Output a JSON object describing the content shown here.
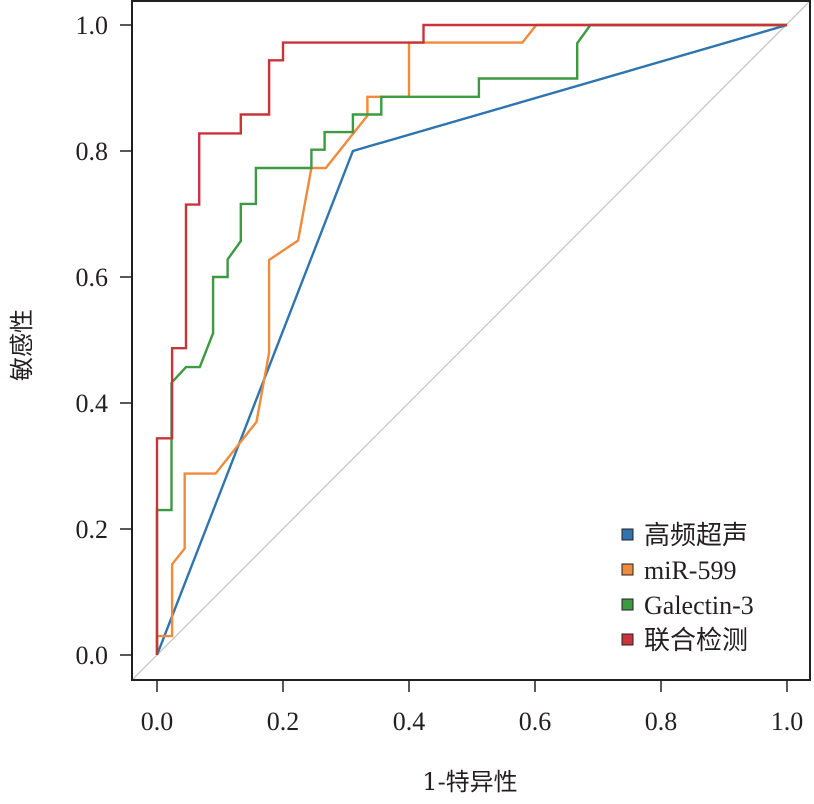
{
  "chart_data": {
    "type": "line",
    "title": "",
    "xlabel": "1-特异性",
    "ylabel": "敏感性",
    "xlim": [
      0,
      1
    ],
    "ylim": [
      0,
      1
    ],
    "xticks": [
      "0.0",
      "0.2",
      "0.4",
      "0.6",
      "0.8",
      "1.0"
    ],
    "yticks": [
      "0.0",
      "0.2",
      "0.4",
      "0.6",
      "0.8",
      "1.0"
    ],
    "grid": false,
    "legend_position": "bottom-right",
    "reference_line": {
      "name": "chance",
      "x": [
        0,
        1
      ],
      "y": [
        0,
        1
      ],
      "color": "#c8c8c8"
    },
    "series": [
      {
        "name": "高频超声",
        "color": "#2e75b0",
        "x": [
          0,
          0.311,
          1
        ],
        "y": [
          0,
          0.8,
          1
        ]
      },
      {
        "name": "miR-599",
        "color": "#f08a3c",
        "x": [
          0,
          0,
          0.024,
          0.024,
          0.044,
          0.044,
          0.093,
          0.158,
          0.178,
          0.178,
          0.224,
          0.245,
          0.268,
          0.334,
          0.334,
          0.4,
          0.4,
          0.58,
          0.602,
          1
        ],
        "y": [
          0,
          0.03,
          0.03,
          0.144,
          0.169,
          0.288,
          0.288,
          0.37,
          0.48,
          0.627,
          0.658,
          0.773,
          0.773,
          0.856,
          0.886,
          0.886,
          0.972,
          0.972,
          1.0,
          1.0
        ]
      },
      {
        "name": "Galectin-3",
        "color": "#3c9a41",
        "x": [
          0,
          0,
          0.023,
          0.023,
          0.046,
          0.068,
          0.089,
          0.089,
          0.112,
          0.112,
          0.133,
          0.133,
          0.157,
          0.157,
          0.245,
          0.245,
          0.266,
          0.266,
          0.311,
          0.311,
          0.356,
          0.356,
          0.511,
          0.511,
          0.667,
          0.667,
          0.688,
          1
        ],
        "y": [
          0,
          0.23,
          0.23,
          0.432,
          0.457,
          0.457,
          0.511,
          0.6,
          0.6,
          0.628,
          0.657,
          0.716,
          0.716,
          0.773,
          0.773,
          0.802,
          0.802,
          0.83,
          0.83,
          0.858,
          0.858,
          0.886,
          0.886,
          0.915,
          0.915,
          0.971,
          1.0,
          1.0
        ]
      },
      {
        "name": "联合检测",
        "color": "#c9343a",
        "x": [
          0,
          0,
          0.024,
          0.024,
          0.046,
          0.046,
          0.067,
          0.067,
          0.133,
          0.133,
          0.178,
          0.178,
          0.2,
          0.2,
          0.423,
          0.423,
          1
        ],
        "y": [
          0,
          0.344,
          0.344,
          0.487,
          0.487,
          0.715,
          0.715,
          0.828,
          0.828,
          0.858,
          0.858,
          0.944,
          0.944,
          0.972,
          0.972,
          1.0,
          1.0
        ]
      }
    ]
  }
}
